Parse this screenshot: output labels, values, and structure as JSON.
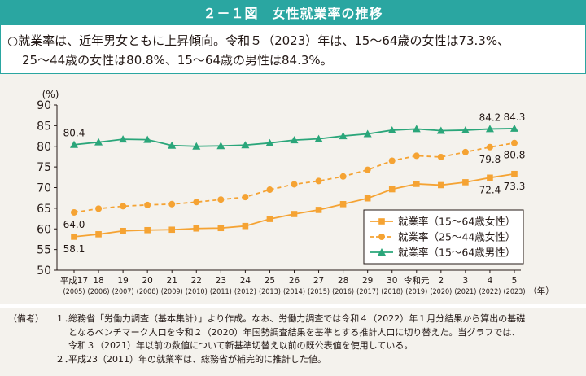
{
  "title": "２－１図　女性就業率の推移",
  "summary": {
    "line1": "○就業率は、近年男女ともに上昇傾向。令和５（2023）年は、15～64歳の女性は73.3%、",
    "line2": "25～44歳の女性は80.8%、15～64歳の男性は84.3%。"
  },
  "chart_data": {
    "type": "line",
    "ylabel": "(%)",
    "xunit": "（年）",
    "ylim": [
      50,
      90
    ],
    "yticks": [
      50,
      55,
      60,
      65,
      70,
      75,
      80,
      85,
      90
    ],
    "grid": false,
    "legend_position": "bottom-right",
    "categories": [
      {
        "top": "平成17",
        "bottom": "(2005)"
      },
      {
        "top": "18",
        "bottom": "(2006)"
      },
      {
        "top": "19",
        "bottom": "(2007)"
      },
      {
        "top": "20",
        "bottom": "(2008)"
      },
      {
        "top": "21",
        "bottom": "(2009)"
      },
      {
        "top": "22",
        "bottom": "(2010)"
      },
      {
        "top": "23",
        "bottom": "(2011)"
      },
      {
        "top": "24",
        "bottom": "(2012)"
      },
      {
        "top": "25",
        "bottom": "(2013)"
      },
      {
        "top": "26",
        "bottom": "(2014)"
      },
      {
        "top": "27",
        "bottom": "(2015)"
      },
      {
        "top": "28",
        "bottom": "(2016)"
      },
      {
        "top": "29",
        "bottom": "(2017)"
      },
      {
        "top": "30",
        "bottom": "(2018)"
      },
      {
        "top": "令和元",
        "bottom": "(2019)"
      },
      {
        "top": "2",
        "bottom": "(2020)"
      },
      {
        "top": "3",
        "bottom": "(2021)"
      },
      {
        "top": "4",
        "bottom": "(2022)"
      },
      {
        "top": "5",
        "bottom": "(2023)"
      }
    ],
    "series": [
      {
        "name": "就業率（15～64歳女性）",
        "color": "#f5a333",
        "marker": "square",
        "dash": false,
        "values": [
          58.1,
          58.7,
          59.5,
          59.7,
          59.8,
          60.1,
          60.2,
          60.7,
          62.4,
          63.6,
          64.6,
          66.0,
          67.4,
          69.6,
          70.9,
          70.6,
          71.3,
          72.4,
          73.3
        ]
      },
      {
        "name": "就業率（25～44歳女性）",
        "color": "#f5a333",
        "marker": "circle",
        "dash": true,
        "values": [
          64.0,
          64.9,
          65.5,
          65.8,
          66.0,
          66.5,
          67.1,
          67.7,
          69.5,
          70.8,
          71.6,
          72.7,
          74.3,
          76.5,
          77.7,
          77.4,
          78.6,
          79.8,
          80.8
        ]
      },
      {
        "name": "就業率（15～64歳男性）",
        "color": "#2aa67a",
        "marker": "triangle",
        "dash": false,
        "values": [
          80.4,
          81.0,
          81.7,
          81.6,
          80.2,
          80.0,
          80.1,
          80.3,
          80.8,
          81.5,
          81.8,
          82.5,
          83.0,
          83.9,
          84.2,
          83.8,
          83.9,
          84.2,
          84.3
        ]
      }
    ],
    "data_labels": [
      {
        "series": 0,
        "index": 0,
        "text": "58.1",
        "pos": "below"
      },
      {
        "series": 1,
        "index": 0,
        "text": "64.0",
        "pos": "below"
      },
      {
        "series": 2,
        "index": 0,
        "text": "80.4",
        "pos": "above"
      },
      {
        "series": 0,
        "index": 17,
        "text": "72.4",
        "pos": "below"
      },
      {
        "series": 0,
        "index": 18,
        "text": "73.3",
        "pos": "below"
      },
      {
        "series": 1,
        "index": 17,
        "text": "79.8",
        "pos": "below"
      },
      {
        "series": 1,
        "index": 18,
        "text": "80.8",
        "pos": "below"
      },
      {
        "series": 2,
        "index": 17,
        "text": "84.2",
        "pos": "above"
      },
      {
        "series": 2,
        "index": 18,
        "text": "84.3",
        "pos": "above"
      }
    ]
  },
  "notes": {
    "label": "（備考）",
    "items": [
      {
        "num": "１．",
        "lines": [
          "総務省「労働力調査（基本集計）」より作成。なお、労働力調査では令和４（2022）年１月分結果から算出の基礎",
          "となるベンチマーク人口を令和２（2020）年国勢調査結果を基準とする推計人口に切り替えた。当グラフでは、",
          "令和３（2021）年以前の数値について新基準切替え以前の既公表値を使用している。"
        ]
      },
      {
        "num": "２．",
        "lines": [
          "平成23（2011）年の就業率は、総務省が補完的に推計した値。"
        ]
      }
    ]
  }
}
